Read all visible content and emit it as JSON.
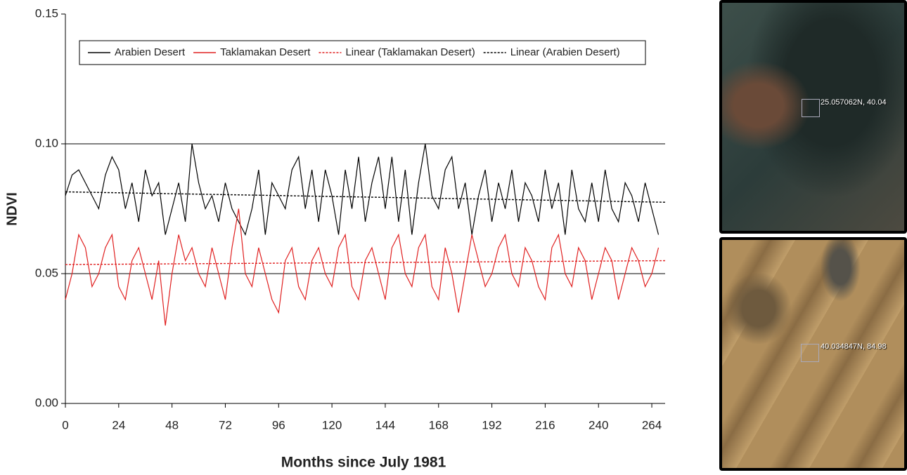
{
  "chart_data": {
    "type": "line",
    "x_label": "Months since July 1981",
    "y_label": "NDVI",
    "x": [
      0,
      3,
      6,
      9,
      12,
      15,
      18,
      21,
      24,
      27,
      30,
      33,
      36,
      39,
      42,
      45,
      48,
      51,
      54,
      57,
      60,
      63,
      66,
      69,
      72,
      75,
      78,
      81,
      84,
      87,
      90,
      93,
      96,
      99,
      102,
      105,
      108,
      111,
      114,
      117,
      120,
      123,
      126,
      129,
      132,
      135,
      138,
      141,
      144,
      147,
      150,
      153,
      156,
      159,
      162,
      165,
      168,
      171,
      174,
      177,
      180,
      183,
      186,
      189,
      192,
      195,
      198,
      201,
      204,
      207,
      210,
      213,
      216,
      219,
      222,
      225,
      228,
      231,
      234,
      237,
      240,
      243,
      246,
      249,
      252,
      255,
      258,
      261,
      264,
      267
    ],
    "series": [
      {
        "name": "Arabien Desert",
        "color": "#000000",
        "dash": false,
        "values": [
          0.08,
          0.088,
          0.09,
          0.085,
          0.08,
          0.075,
          0.088,
          0.095,
          0.09,
          0.075,
          0.085,
          0.07,
          0.09,
          0.08,
          0.085,
          0.065,
          0.075,
          0.085,
          0.07,
          0.1,
          0.085,
          0.075,
          0.08,
          0.07,
          0.085,
          0.075,
          0.07,
          0.065,
          0.075,
          0.09,
          0.065,
          0.085,
          0.08,
          0.075,
          0.09,
          0.095,
          0.075,
          0.09,
          0.07,
          0.09,
          0.08,
          0.065,
          0.09,
          0.075,
          0.095,
          0.07,
          0.085,
          0.095,
          0.075,
          0.095,
          0.07,
          0.09,
          0.065,
          0.085,
          0.1,
          0.08,
          0.075,
          0.09,
          0.095,
          0.075,
          0.085,
          0.065,
          0.08,
          0.09,
          0.07,
          0.085,
          0.075,
          0.09,
          0.07,
          0.085,
          0.08,
          0.07,
          0.09,
          0.075,
          0.085,
          0.065,
          0.09,
          0.075,
          0.07,
          0.085,
          0.07,
          0.09,
          0.075,
          0.07,
          0.085,
          0.08,
          0.07,
          0.085,
          0.075,
          0.065
        ]
      },
      {
        "name": "Taklamakan Desert",
        "color": "#e02020",
        "dash": false,
        "values": [
          0.04,
          0.05,
          0.065,
          0.06,
          0.045,
          0.05,
          0.06,
          0.065,
          0.045,
          0.04,
          0.055,
          0.06,
          0.05,
          0.04,
          0.055,
          0.03,
          0.05,
          0.065,
          0.055,
          0.06,
          0.05,
          0.045,
          0.06,
          0.05,
          0.04,
          0.06,
          0.075,
          0.05,
          0.045,
          0.06,
          0.05,
          0.04,
          0.035,
          0.055,
          0.06,
          0.045,
          0.04,
          0.055,
          0.06,
          0.05,
          0.045,
          0.06,
          0.065,
          0.045,
          0.04,
          0.055,
          0.06,
          0.05,
          0.04,
          0.06,
          0.065,
          0.05,
          0.045,
          0.06,
          0.065,
          0.045,
          0.04,
          0.06,
          0.05,
          0.035,
          0.05,
          0.065,
          0.055,
          0.045,
          0.05,
          0.06,
          0.065,
          0.05,
          0.045,
          0.06,
          0.055,
          0.045,
          0.04,
          0.06,
          0.065,
          0.05,
          0.045,
          0.06,
          0.055,
          0.04,
          0.05,
          0.06,
          0.055,
          0.04,
          0.05,
          0.06,
          0.055,
          0.045,
          0.05,
          0.06
        ]
      },
      {
        "name": "Linear (Taklamakan Desert)",
        "color": "#e02020",
        "dash": true,
        "x": [
          0,
          270
        ],
        "values": [
          0.0535,
          0.055
        ]
      },
      {
        "name": "Linear (Arabien Desert)",
        "color": "#000000",
        "dash": true,
        "x": [
          0,
          270
        ],
        "values": [
          0.0815,
          0.0775
        ]
      }
    ],
    "xlim": [
      0,
      270
    ],
    "xticks": [
      0,
      24,
      48,
      72,
      96,
      120,
      144,
      168,
      192,
      216,
      240,
      264
    ],
    "ylim": [
      0,
      0.15
    ],
    "yticks": [
      {
        "value": 0,
        "label": "0.00"
      },
      {
        "value": 0.05,
        "label": "0.05"
      },
      {
        "value": 0.1,
        "label": "0.10"
      },
      {
        "value": 0.15,
        "label": "0.15"
      }
    ],
    "grid": true,
    "legend": "top"
  },
  "images": [
    {
      "label": "25.057062N, 40.04"
    },
    {
      "label": "40.034847N, 84.98"
    }
  ]
}
